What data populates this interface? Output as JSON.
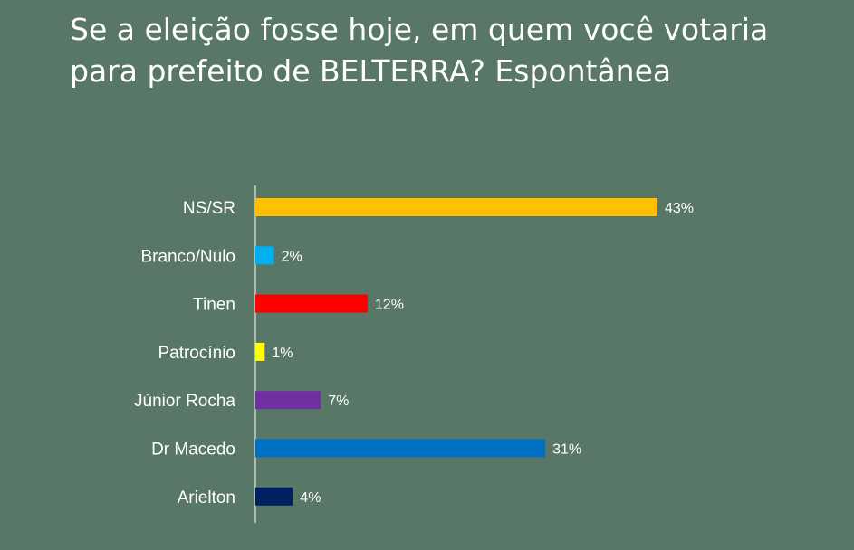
{
  "chart_data": {
    "type": "bar",
    "orientation": "horizontal",
    "title": "Se a eleição fosse hoje, em quem você votaria para prefeito de BELTERRA? Espontânea",
    "categories": [
      "NS/SR",
      "Branco/Nulo",
      "Tinen",
      "Patrocínio",
      "Júnior Rocha",
      "Dr Macedo",
      "Arielton"
    ],
    "values": [
      43,
      2,
      12,
      1,
      7,
      31,
      4
    ],
    "value_labels": [
      "43%",
      "2%",
      "12%",
      "1%",
      "7%",
      "31%",
      "4%"
    ],
    "colors": [
      "#ffc000",
      "#00b0f0",
      "#ff0000",
      "#ffff00",
      "#7030a0",
      "#0070c0",
      "#002060"
    ],
    "xlabel": "",
    "ylabel": "",
    "xlim": [
      0,
      43
    ],
    "grid": false,
    "legend": "none"
  }
}
